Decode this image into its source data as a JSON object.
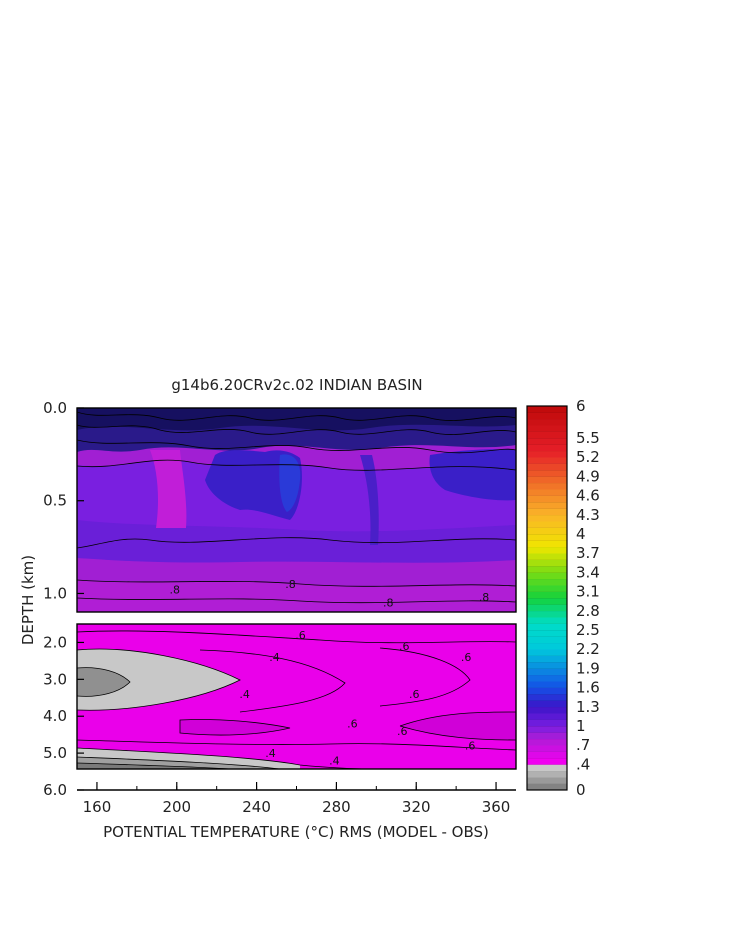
{
  "chart_data": {
    "type": "heatmap",
    "title": "g14b6.20CRv2c.02 INDIAN BASIN",
    "xlabel": "POTENTIAL TEMPERATURE (°C) RMS (MODEL - OBS)",
    "ylabel": "DEPTH (km)",
    "xlim": [
      150,
      370
    ],
    "x_ticks": [
      "160",
      "200",
      "240",
      "280",
      "320",
      "360"
    ],
    "upper_panel": {
      "ylim": [
        0.0,
        1.1
      ],
      "y_ticks": [
        "0.0",
        "0.5",
        "1.0"
      ],
      "contour_labels": [
        {
          "text": ".8",
          "x": 199,
          "depth": 0.98
        },
        {
          "text": ".8",
          "x": 257,
          "depth": 0.95
        },
        {
          "text": ".8",
          "x": 306,
          "depth": 1.05
        },
        {
          "text": ".8",
          "x": 354,
          "depth": 1.02
        }
      ],
      "bands": [
        {
          "depth_from": 0.0,
          "depth_to": 0.15,
          "value": 1.7
        },
        {
          "depth_from": 0.15,
          "depth_to": 0.8,
          "value": 0.95
        },
        {
          "depth_from": 0.8,
          "depth_to": 1.1,
          "value": 0.75
        }
      ],
      "cores": [
        {
          "x_from": 218,
          "x_to": 300,
          "depth_from": 0.25,
          "depth_to": 0.55,
          "value": 1.2
        },
        {
          "x_from": 330,
          "x_to": 370,
          "depth_from": 0.25,
          "depth_to": 0.45,
          "value": 1.2
        },
        {
          "x_from": 156,
          "x_to": 200,
          "depth_from": 0.35,
          "depth_to": 0.6,
          "value": 0.8
        }
      ]
    },
    "lower_panel": {
      "ylim": [
        1.5,
        6.0
      ],
      "y_ticks": [
        "2.0",
        "3.0",
        "4.0",
        "5.0",
        "6.0"
      ],
      "contour_labels": [
        {
          "text": ".6",
          "x": 262,
          "depth": 1.8
        },
        {
          "text": ".6",
          "x": 314,
          "depth": 2.1
        },
        {
          "text": ".6",
          "x": 345,
          "depth": 2.4
        },
        {
          "text": ".4",
          "x": 249,
          "depth": 2.4
        },
        {
          "text": ".4",
          "x": 234,
          "depth": 3.4
        },
        {
          "text": ".6",
          "x": 319,
          "depth": 3.4
        },
        {
          "text": ".6",
          "x": 288,
          "depth": 4.2
        },
        {
          "text": ".6",
          "x": 313,
          "depth": 4.4
        },
        {
          "text": ".6",
          "x": 347,
          "depth": 4.8
        },
        {
          "text": ".4",
          "x": 247,
          "depth": 5.0
        },
        {
          "text": ".4",
          "x": 279,
          "depth": 5.2
        }
      ],
      "bands": [
        {
          "depth_from": 1.5,
          "depth_to": 5.3,
          "value": 0.6
        },
        {
          "depth_from": 2.0,
          "depth_to": 3.7,
          "x_from": 150,
          "x_to": 230,
          "value": 0.4
        },
        {
          "depth_from": 2.5,
          "depth_to": 3.2,
          "x_from": 150,
          "x_to": 176,
          "value": 0.3
        },
        {
          "depth_from": 4.8,
          "depth_to": 5.3,
          "x_from": 150,
          "x_to": 292,
          "value": 0.4
        },
        {
          "depth_from": 5.2,
          "depth_to": 6.0,
          "value": 0.2
        }
      ]
    },
    "colorbar": {
      "ticks": [
        "6",
        "5.5",
        "5.2",
        "4.9",
        "4.6",
        "4.3",
        "4",
        "3.7",
        "3.4",
        "3.1",
        "2.8",
        "2.5",
        "2.2",
        "1.9",
        "1.6",
        "1.3",
        "1",
        ".7",
        ".4",
        "0"
      ],
      "range": [
        0,
        6
      ]
    }
  }
}
